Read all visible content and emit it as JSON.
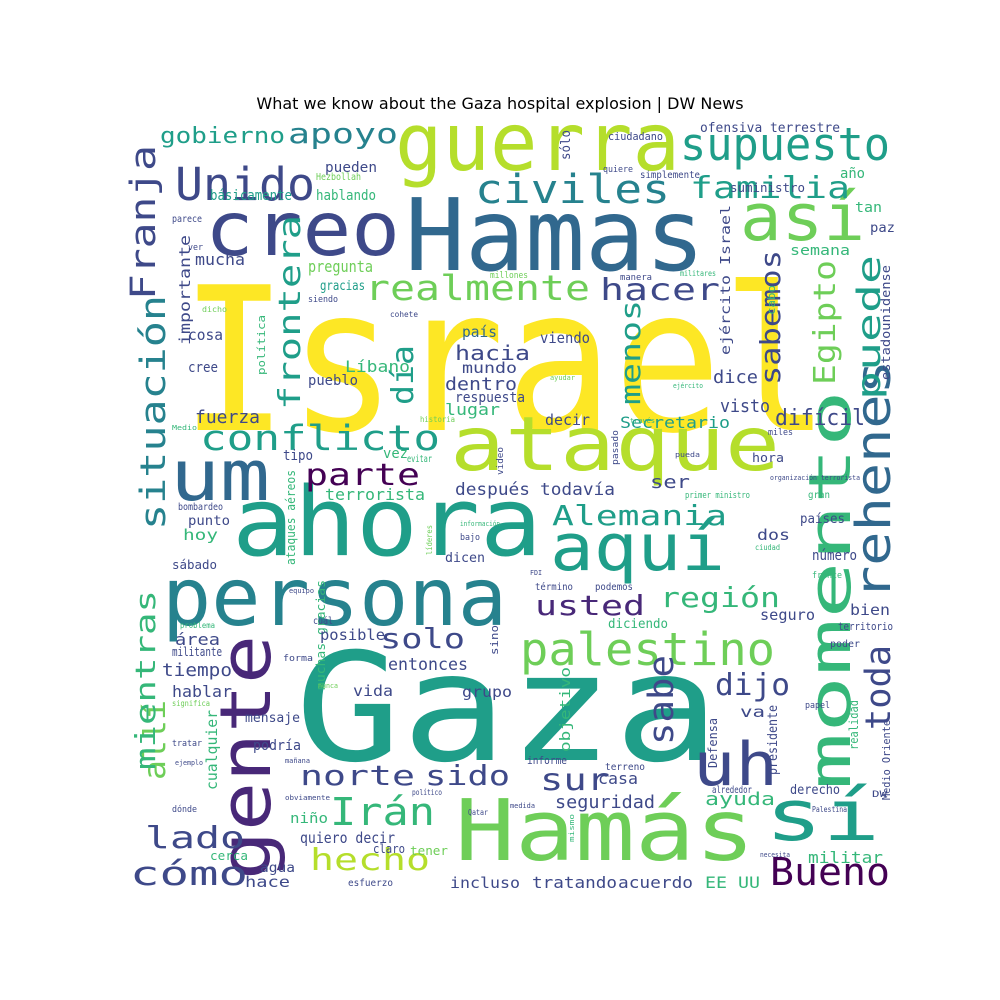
{
  "title": "What we know about the Gaza hospital explosion | DW News",
  "palette": {
    "yellow": "#fde725",
    "lime": "#b5de2b",
    "green": "#6ece58",
    "sea": "#35b779",
    "teal": "#1f9e89",
    "steel": "#26828e",
    "blue": "#31688e",
    "indigo": "#3e4989",
    "purple": "#482878",
    "dark": "#440154"
  },
  "words": [
    {
      "text": "Israel",
      "color": "yellow"
    },
    {
      "text": "Gaza",
      "color": "teal"
    },
    {
      "text": "Hamas",
      "color": "blue"
    },
    {
      "text": "Hamás",
      "color": "green"
    },
    {
      "text": "ahora",
      "color": "teal"
    },
    {
      "text": "persona",
      "color": "steel"
    },
    {
      "text": "guerra",
      "color": "lime"
    },
    {
      "text": "creo",
      "color": "indigo"
    },
    {
      "text": "ataque",
      "color": "lime"
    },
    {
      "text": "aquí",
      "color": "teal"
    },
    {
      "text": "gente",
      "color": "purple"
    },
    {
      "text": "um",
      "color": "blue"
    },
    {
      "text": "así",
      "color": "green"
    },
    {
      "text": "sí",
      "color": "teal"
    },
    {
      "text": "momento",
      "color": "sea"
    },
    {
      "text": "uh",
      "color": "indigo"
    },
    {
      "text": "rehenes",
      "color": "blue"
    },
    {
      "text": "supuesto",
      "color": "teal"
    },
    {
      "text": "Unido",
      "color": "indigo"
    },
    {
      "text": "civiles",
      "color": "steel"
    },
    {
      "text": "palestino",
      "color": "green"
    },
    {
      "text": "conflicto",
      "color": "teal"
    },
    {
      "text": "realmente",
      "color": "green"
    },
    {
      "text": "situación",
      "color": "steel"
    },
    {
      "text": "Franja",
      "color": "indigo"
    },
    {
      "text": "apoyo",
      "color": "steel"
    },
    {
      "text": "gobierno",
      "color": "teal"
    },
    {
      "text": "familia",
      "color": "teal"
    },
    {
      "text": "hacer",
      "color": "indigo"
    },
    {
      "text": "puede",
      "color": "teal"
    },
    {
      "text": "Egipto",
      "color": "green"
    },
    {
      "text": "sabemos",
      "color": "indigo"
    },
    {
      "text": "menos",
      "color": "teal"
    },
    {
      "text": "frontera",
      "color": "teal"
    },
    {
      "text": "día",
      "color": "teal"
    },
    {
      "text": "parte",
      "color": "dark"
    },
    {
      "text": "Alemania",
      "color": "teal"
    },
    {
      "text": "usted",
      "color": "purple"
    },
    {
      "text": "región",
      "color": "sea"
    },
    {
      "text": "solo",
      "color": "indigo"
    },
    {
      "text": "sabe",
      "color": "indigo"
    },
    {
      "text": "dijo",
      "color": "indigo"
    },
    {
      "text": "toda",
      "color": "indigo"
    },
    {
      "text": "allí",
      "color": "green"
    },
    {
      "text": "mientras",
      "color": "sea"
    },
    {
      "text": "norte",
      "color": "indigo"
    },
    {
      "text": "sido",
      "color": "indigo"
    },
    {
      "text": "sur",
      "color": "indigo"
    },
    {
      "text": "Irán",
      "color": "sea"
    },
    {
      "text": "lado",
      "color": "indigo"
    },
    {
      "text": "hecho",
      "color": "lime"
    },
    {
      "text": "cómo",
      "color": "indigo"
    },
    {
      "text": "Bueno",
      "color": "dark"
    },
    {
      "text": "hacia",
      "color": "indigo"
    },
    {
      "text": "dentro",
      "color": "indigo"
    },
    {
      "text": "mundo",
      "color": "indigo"
    },
    {
      "text": "respuesta",
      "color": "indigo"
    },
    {
      "text": "lugar",
      "color": "sea"
    },
    {
      "text": "Líbano",
      "color": "sea"
    },
    {
      "text": "país",
      "color": "blue"
    },
    {
      "text": "viendo",
      "color": "indigo"
    },
    {
      "text": "dice",
      "color": "indigo"
    },
    {
      "text": "visto",
      "color": "indigo"
    },
    {
      "text": "difícil",
      "color": "indigo"
    },
    {
      "text": "Secretario",
      "color": "teal"
    },
    {
      "text": "decir",
      "color": "indigo"
    },
    {
      "text": "después",
      "color": "indigo"
    },
    {
      "text": "todavía",
      "color": "indigo"
    },
    {
      "text": "ser",
      "color": "indigo"
    },
    {
      "text": "terrorista",
      "color": "sea"
    },
    {
      "text": "fuerza",
      "color": "indigo"
    },
    {
      "text": "vez",
      "color": "sea"
    },
    {
      "text": "tipo",
      "color": "indigo"
    },
    {
      "text": "cree",
      "color": "indigo"
    },
    {
      "text": "cosa",
      "color": "indigo"
    },
    {
      "text": "mucha",
      "color": "indigo"
    },
    {
      "text": "importante",
      "color": "indigo"
    },
    {
      "text": "pregunta",
      "color": "green"
    },
    {
      "text": "gracias",
      "color": "teal"
    },
    {
      "text": "pueblo",
      "color": "indigo"
    },
    {
      "text": "hablando",
      "color": "sea"
    },
    {
      "text": "pueden",
      "color": "indigo"
    },
    {
      "text": "básicamente",
      "color": "teal"
    },
    {
      "text": "ofensiva terrestre",
      "color": "indigo"
    },
    {
      "text": "suministro",
      "color": "indigo"
    },
    {
      "text": "año",
      "color": "sea"
    },
    {
      "text": "tan",
      "color": "sea"
    },
    {
      "text": "paz",
      "color": "indigo"
    },
    {
      "text": "semana",
      "color": "sea"
    },
    {
      "text": "estadounidense",
      "color": "indigo"
    },
    {
      "text": "ejército Israel",
      "color": "indigo"
    },
    {
      "text": "sólo",
      "color": "indigo"
    },
    {
      "text": "ciudadano",
      "color": "indigo"
    },
    {
      "text": "quiere",
      "color": "indigo"
    },
    {
      "text": "simplemente",
      "color": "indigo"
    },
    {
      "text": "Hezbollah",
      "color": "green"
    },
    {
      "text": "parece",
      "color": "indigo"
    },
    {
      "text": "ver",
      "color": "indigo"
    },
    {
      "text": "millones",
      "color": "green"
    },
    {
      "text": "manera",
      "color": "indigo"
    },
    {
      "text": "militares",
      "color": "sea"
    },
    {
      "text": "dicho",
      "color": "green"
    },
    {
      "text": "siendo",
      "color": "indigo"
    },
    {
      "text": "cohete",
      "color": "indigo"
    },
    {
      "text": "cabo",
      "color": "sea"
    },
    {
      "text": "política",
      "color": "sea"
    },
    {
      "text": "ayudar",
      "color": "green"
    },
    {
      "text": "ejército",
      "color": "sea"
    },
    {
      "text": "historia",
      "color": "green"
    },
    {
      "text": "través",
      "color": "sea"
    },
    {
      "text": "Medio",
      "color": "sea"
    },
    {
      "text": "pasado",
      "color": "indigo"
    },
    {
      "text": "miles",
      "color": "indigo"
    },
    {
      "text": "hora",
      "color": "indigo"
    },
    {
      "text": "pueda",
      "color": "indigo"
    },
    {
      "text": "organización terrorista",
      "color": "indigo"
    },
    {
      "text": "gran",
      "color": "sea"
    },
    {
      "text": "primer ministro",
      "color": "sea"
    },
    {
      "text": "países",
      "color": "indigo"
    },
    {
      "text": "evitar",
      "color": "sea"
    },
    {
      "text": "video",
      "color": "indigo"
    },
    {
      "text": "ataques aéreos",
      "color": "sea"
    },
    {
      "text": "bombardeo",
      "color": "indigo"
    },
    {
      "text": "punto",
      "color": "indigo"
    },
    {
      "text": "hoy",
      "color": "sea"
    },
    {
      "text": "líderes",
      "color": "green"
    },
    {
      "text": "información",
      "color": "sea"
    },
    {
      "text": "bajo",
      "color": "indigo"
    },
    {
      "text": "dicen",
      "color": "indigo"
    },
    {
      "text": "dos",
      "color": "indigo"
    },
    {
      "text": "ciudad",
      "color": "sea"
    },
    {
      "text": "número",
      "color": "indigo"
    },
    {
      "text": "frente",
      "color": "sea"
    },
    {
      "text": "sábado",
      "color": "indigo"
    },
    {
      "text": "término",
      "color": "indigo"
    },
    {
      "text": "podemos",
      "color": "indigo"
    },
    {
      "text": "FDI",
      "color": "indigo"
    },
    {
      "text": "equipo",
      "color": "indigo"
    },
    {
      "text": "muchas gracias",
      "color": "sea"
    },
    {
      "text": "seguro",
      "color": "indigo"
    },
    {
      "text": "bien",
      "color": "indigo"
    },
    {
      "text": "territorio",
      "color": "indigo"
    },
    {
      "text": "problema",
      "color": "sea"
    },
    {
      "text": "cuál",
      "color": "indigo"
    },
    {
      "text": "diciendo",
      "color": "sea"
    },
    {
      "text": "área",
      "color": "indigo"
    },
    {
      "text": "posible",
      "color": "indigo"
    },
    {
      "text": "militante",
      "color": "indigo"
    },
    {
      "text": "sino",
      "color": "indigo"
    },
    {
      "text": "poder",
      "color": "indigo"
    },
    {
      "text": "tiempo",
      "color": "indigo"
    },
    {
      "text": "entonces",
      "color": "indigo"
    },
    {
      "text": "forma",
      "color": "indigo"
    },
    {
      "text": "hablar",
      "color": "indigo"
    },
    {
      "text": "grupo",
      "color": "indigo"
    },
    {
      "text": "vida",
      "color": "indigo"
    },
    {
      "text": "nunca",
      "color": "green"
    },
    {
      "text": "significa",
      "color": "green"
    },
    {
      "text": "objetivo",
      "color": "sea"
    },
    {
      "text": "va",
      "color": "indigo"
    },
    {
      "text": "papel",
      "color": "indigo"
    },
    {
      "text": "mensaje",
      "color": "indigo"
    },
    {
      "text": "podría",
      "color": "indigo"
    },
    {
      "text": "cualquier",
      "color": "sea"
    },
    {
      "text": "Defensa",
      "color": "indigo"
    },
    {
      "text": "presidente",
      "color": "indigo"
    },
    {
      "text": "realidad",
      "color": "sea"
    },
    {
      "text": "tratar",
      "color": "indigo"
    },
    {
      "text": "ejemplo",
      "color": "indigo"
    },
    {
      "text": "informe",
      "color": "indigo"
    },
    {
      "text": "terreno",
      "color": "indigo"
    },
    {
      "text": "Medio Oriente",
      "color": "indigo"
    },
    {
      "text": "mañana",
      "color": "indigo"
    },
    {
      "text": "obviamente",
      "color": "indigo"
    },
    {
      "text": "casa",
      "color": "indigo"
    },
    {
      "text": "alrededor",
      "color": "indigo"
    },
    {
      "text": "derecho",
      "color": "indigo"
    },
    {
      "text": "DW",
      "color": "indigo"
    },
    {
      "text": "dónde",
      "color": "indigo"
    },
    {
      "text": "político",
      "color": "indigo"
    },
    {
      "text": "Qatar",
      "color": "indigo"
    },
    {
      "text": "mismo",
      "color": "sea"
    },
    {
      "text": "medida",
      "color": "indigo"
    },
    {
      "text": "seguridad",
      "color": "indigo"
    },
    {
      "text": "ayuda",
      "color": "sea"
    },
    {
      "text": "Palestina",
      "color": "indigo"
    },
    {
      "text": "niño",
      "color": "sea"
    },
    {
      "text": "quiero decir",
      "color": "indigo"
    },
    {
      "text": "tener",
      "color": "green"
    },
    {
      "text": "claro",
      "color": "indigo"
    },
    {
      "text": "cerca",
      "color": "sea"
    },
    {
      "text": "militar",
      "color": "sea"
    },
    {
      "text": "agua",
      "color": "indigo"
    },
    {
      "text": "hace",
      "color": "indigo"
    },
    {
      "text": "esfuerzo",
      "color": "indigo"
    },
    {
      "text": "incluso",
      "color": "indigo"
    },
    {
      "text": "tratando",
      "color": "indigo"
    },
    {
      "text": "acuerdo",
      "color": "indigo"
    },
    {
      "text": "EE UU",
      "color": "sea"
    },
    {
      "text": "necesita",
      "color": "indigo"
    }
  ]
}
